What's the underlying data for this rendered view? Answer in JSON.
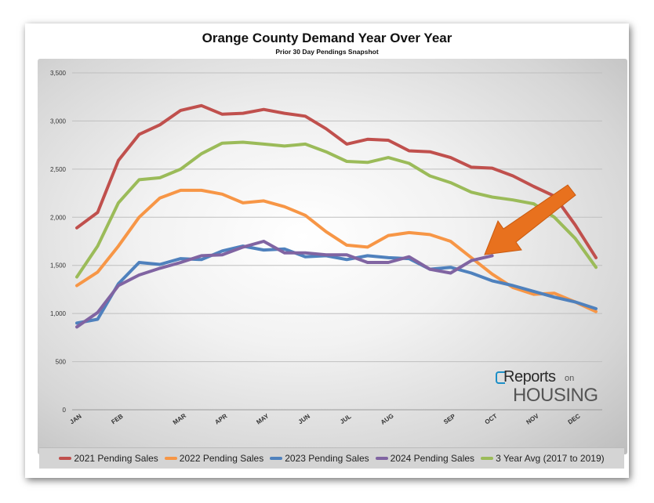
{
  "chart_data": {
    "type": "line",
    "title": "Orange County Demand Year Over Year",
    "subtitle": "Prior 30 Day Pendings Snapshot",
    "ylim": [
      0,
      3500
    ],
    "yticks": [
      0,
      500,
      1000,
      1500,
      2000,
      2500,
      3000,
      3500
    ],
    "ytick_labels": [
      "0",
      "500",
      "1,000",
      "1,500",
      "2,000",
      "2,500",
      "3,000",
      "3,500"
    ],
    "x_count": 26,
    "xticks": [
      {
        "label": "JAN",
        "index": 0
      },
      {
        "label": "FEB",
        "index": 2
      },
      {
        "label": "MAR",
        "index": 5
      },
      {
        "label": "APR",
        "index": 7
      },
      {
        "label": "MAY",
        "index": 9
      },
      {
        "label": "JUN",
        "index": 11
      },
      {
        "label": "JUL",
        "index": 13
      },
      {
        "label": "AUG",
        "index": 15
      },
      {
        "label": "SEP",
        "index": 18
      },
      {
        "label": "OCT",
        "index": 20
      },
      {
        "label": "NOV",
        "index": 22
      },
      {
        "label": "DEC",
        "index": 24
      }
    ],
    "grid": true,
    "legend_position": "bottom",
    "series": [
      {
        "name": "2021 Pending Sales",
        "color": "#c0504d",
        "values": [
          1890,
          2050,
          2590,
          2860,
          2960,
          3110,
          3160,
          3070,
          3080,
          3120,
          3080,
          3050,
          2920,
          2760,
          2810,
          2800,
          2690,
          2680,
          2620,
          2520,
          2510,
          2430,
          2320,
          2220,
          1920,
          1580
        ]
      },
      {
        "name": "2022 Pending Sales",
        "color": "#f79646",
        "values": [
          1290,
          1430,
          1700,
          2000,
          2200,
          2280,
          2280,
          2240,
          2150,
          2170,
          2110,
          2020,
          1850,
          1710,
          1690,
          1810,
          1840,
          1820,
          1750,
          1580,
          1410,
          1270,
          1200,
          1210,
          1120,
          1020
        ]
      },
      {
        "name": "2023 Pending Sales",
        "color": "#4f81bd",
        "values": [
          900,
          940,
          1310,
          1530,
          1510,
          1570,
          1560,
          1650,
          1700,
          1660,
          1670,
          1590,
          1600,
          1560,
          1600,
          1580,
          1570,
          1460,
          1480,
          1420,
          1340,
          1290,
          1230,
          1170,
          1120,
          1050
        ]
      },
      {
        "name": "2024 Pending Sales",
        "color": "#8064a2",
        "values": [
          860,
          1010,
          1290,
          1400,
          1470,
          1530,
          1600,
          1610,
          1690,
          1750,
          1630,
          1630,
          1610,
          1610,
          1530,
          1530,
          1590,
          1460,
          1420,
          1550,
          1600
        ]
      },
      {
        "name": "3 Year Avg (2017 to 2019)",
        "color": "#9bbb59",
        "values": [
          1380,
          1700,
          2150,
          2390,
          2410,
          2500,
          2660,
          2770,
          2780,
          2760,
          2740,
          2760,
          2680,
          2580,
          2570,
          2620,
          2560,
          2430,
          2360,
          2260,
          2210,
          2180,
          2140,
          2000,
          1780,
          1480
        ]
      }
    ]
  },
  "annotation": {
    "type": "arrow",
    "color": "#e8711e"
  },
  "logo": {
    "line1": "Reports",
    "line1_small": "on",
    "line2": "HOUSING",
    "mark_color": "#1d8fc7"
  }
}
